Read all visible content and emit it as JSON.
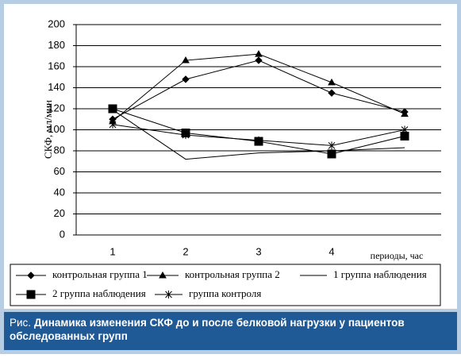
{
  "chart_data": {
    "type": "line",
    "figure_label": "Рис.",
    "title": "Динамика изменения СКФ до и после белковой нагрузки у пациентов обследованных групп",
    "ylabel": "СКФ, мл/мин",
    "xlabel": "периоды, час",
    "categories": [
      "1",
      "2",
      "3",
      "4",
      null
    ],
    "ylim": [
      0,
      200
    ],
    "yticks": [
      0,
      20,
      40,
      60,
      80,
      100,
      120,
      140,
      160,
      180,
      200
    ],
    "grid": true,
    "series": [
      {
        "name": "контрольная группа 1",
        "color": "#000000",
        "marker": "diamond",
        "values": [
          110,
          148,
          166,
          135,
          117
        ]
      },
      {
        "name": "контрольная группа 2",
        "color": "#000000",
        "marker": "triangle",
        "values": [
          108,
          166,
          172,
          145,
          115
        ]
      },
      {
        "name": "1 группа наблюдения",
        "color": "#000000",
        "marker": "none",
        "values": [
          119,
          72,
          78,
          80,
          83
        ]
      },
      {
        "name": "2 группа наблюдения",
        "color": "#000000",
        "marker": "square",
        "values": [
          120,
          97,
          89,
          77,
          94
        ]
      },
      {
        "name": "группа контроля",
        "color": "#000000",
        "marker": "asterisk",
        "values": [
          105,
          95,
          90,
          85,
          100
        ]
      }
    ]
  }
}
